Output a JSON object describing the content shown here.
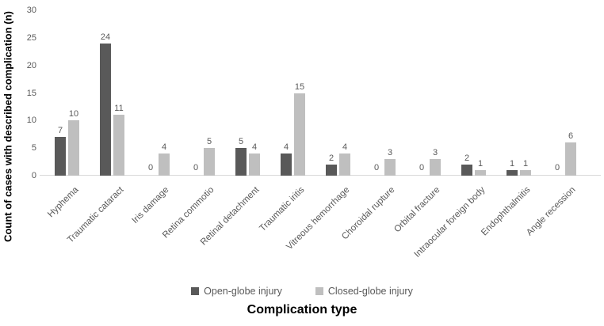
{
  "chart_data": {
    "type": "bar",
    "title": "",
    "xlabel": "Complication type",
    "ylabel": "Count of cases with described complication (n)",
    "categories": [
      "Hyphema",
      "Traumatic cataract",
      "Iris damage",
      "Retina commotio",
      "Retinal detachment",
      "Traumatic iritis",
      "Vitreous hemorrhage",
      "Choroidal rupture",
      "Orbital fracture",
      "Intraocular foreign body",
      "Endophthalmitis",
      "Angle recession"
    ],
    "series": [
      {
        "name": "Open-globe injury",
        "color": "#595959",
        "values": [
          7,
          24,
          0,
          0,
          5,
          4,
          2,
          0,
          0,
          2,
          1,
          0
        ]
      },
      {
        "name": "Closed-globe injury",
        "color": "#bfbfbf",
        "values": [
          10,
          11,
          4,
          5,
          4,
          15,
          4,
          3,
          3,
          1,
          1,
          6
        ]
      }
    ],
    "ylim": [
      0,
      30
    ],
    "ytick_step": 5,
    "grid": false,
    "legend_position": "bottom",
    "data_labels": true,
    "colors": {
      "axis_line": "#d9d9d9",
      "label_text": "#595959",
      "title_text": "#000000"
    }
  }
}
